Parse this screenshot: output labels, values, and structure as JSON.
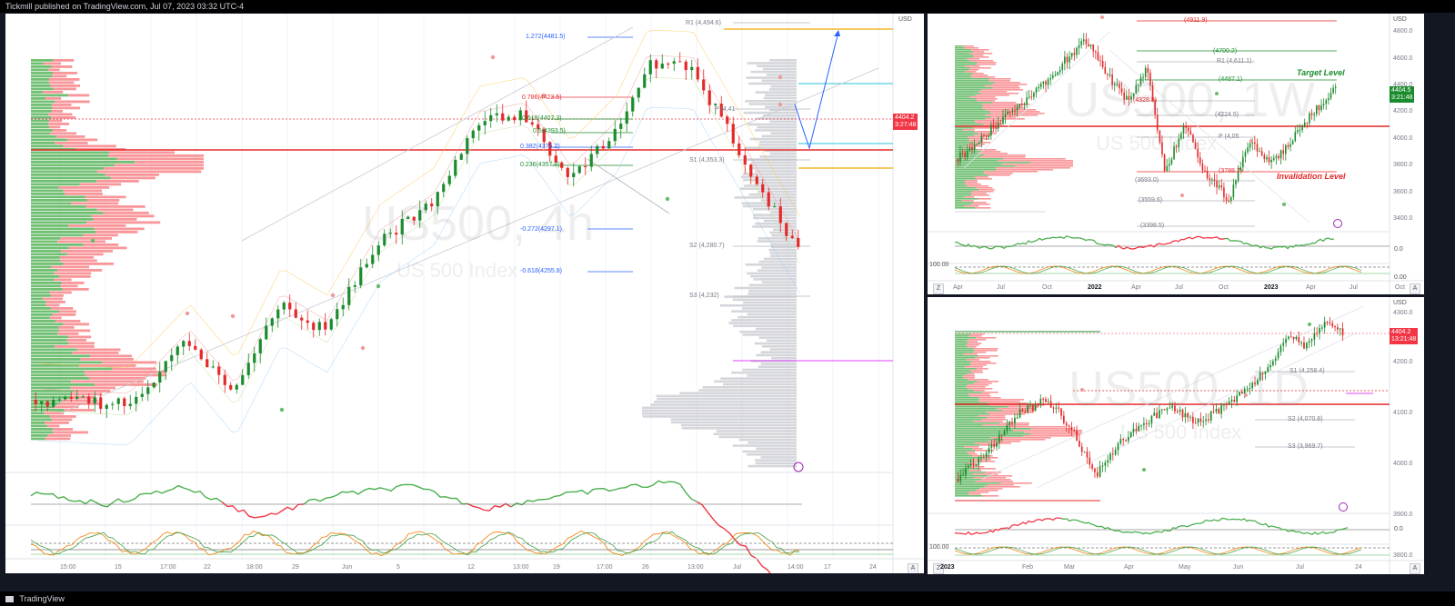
{
  "header": {
    "text": "Tickmill published on TradingView.com, Jul 07, 2023 03:32 UTC-4"
  },
  "footer": {
    "logo_text": "TradingView"
  },
  "colors": {
    "up": "#089981",
    "down": "#f23645",
    "candle_up": "#1b8c2d",
    "candle_down": "#e52929"
  },
  "chart_data": [
    {
      "type": "candlestick",
      "watermark": {
        "symbol": "US500, 4h",
        "subtitle": "US 500 Index"
      },
      "currency": "USD",
      "price_tag": {
        "value": "4404.2",
        "timer": "3:27:48"
      },
      "levels": [
        {
          "label": "1.272(4481.5)"
        },
        {
          "label": "R1 (4,494.6)"
        },
        {
          "label": "0.786(4423.5)"
        },
        {
          "label": "P (4,41"
        },
        {
          "label": "0.618(4407.3)"
        },
        {
          "label": "0.5(4393.5)"
        },
        {
          "label": "0.382(4375.2)"
        },
        {
          "label": "0.236(4357.8)"
        },
        {
          "label": "S1 (4,353.3)"
        },
        {
          "label": "-0.272(4297.1)"
        },
        {
          "label": "S2 (4,280.7)"
        },
        {
          "label": "-0.618(4255.8)"
        },
        {
          "label": "S3 (4,232)"
        }
      ],
      "x_labels": [
        "15:00",
        "15",
        "17:00",
        "22",
        "18:00",
        "29",
        "Jun",
        "5",
        "12",
        "13:00",
        "19",
        "17:00",
        "26",
        "13:00",
        "Jul",
        "14:00",
        "17",
        "24"
      ],
      "bottom_button": "A"
    },
    {
      "type": "candlestick",
      "watermark": {
        "symbol": "US500, 1W",
        "subtitle": "US 500 Index"
      },
      "currency": "USD",
      "y_ticks": [
        "4800.0",
        "4600.0",
        "4400.0",
        "4200.0",
        "4000.0",
        "3800.0",
        "3600.0",
        "3400.0"
      ],
      "price_tag": {
        "value": "4404.5",
        "timer": "3:21:48"
      },
      "levels": [
        {
          "label": "(4911.9)"
        },
        {
          "label": "(4700.2)"
        },
        {
          "label": "R1 (4,611.1)"
        },
        {
          "label": "(4487.1)"
        },
        {
          "label": "(4328.8)"
        },
        {
          "label": "(4224.5)"
        },
        {
          "label": "P (4,05"
        },
        {
          "label": "(3788.7)"
        },
        {
          "label": "(3693.0)"
        },
        {
          "label": "(3559.6)"
        },
        {
          "label": "(3398.5)"
        }
      ],
      "annotations": [
        {
          "text": "Target Level",
          "color": "#1b8c2d"
        },
        {
          "text": "Invalidation Level",
          "color": "#e52929"
        }
      ],
      "osc_ticks": [
        "0.0",
        "100.00",
        "0.00"
      ],
      "x_labels": [
        "Apr",
        "Jul",
        "Oct",
        "2022",
        "Apr",
        "Jul",
        "Oct",
        "2023",
        "Apr",
        "Jul",
        "Oct"
      ],
      "bold_labels": [
        "2022",
        "2023"
      ],
      "bottom_button": "A"
    },
    {
      "type": "candlestick",
      "watermark": {
        "symbol": "US500, 1D",
        "subtitle": "US 500 Index"
      },
      "currency": "USD",
      "y_ticks": [
        "4300.0",
        "4200.0",
        "4100.0",
        "4000.0",
        "3900.0",
        "3800.0"
      ],
      "price_tag": {
        "value": "4404.2",
        "timer": "13:21:48"
      },
      "levels": [
        {
          "label": "S1 (4,258.4)"
        },
        {
          "label": "S2 (4,070.8)"
        },
        {
          "label": "S3 (3,969.7)"
        }
      ],
      "osc_ticks": [
        "0.0",
        "100.00"
      ],
      "x_labels": [
        "2023",
        "Feb",
        "Mar",
        "Apr",
        "May",
        "Jun",
        "Jul",
        "24"
      ],
      "bold_labels": [
        "2023"
      ],
      "bottom_button": "A"
    }
  ]
}
